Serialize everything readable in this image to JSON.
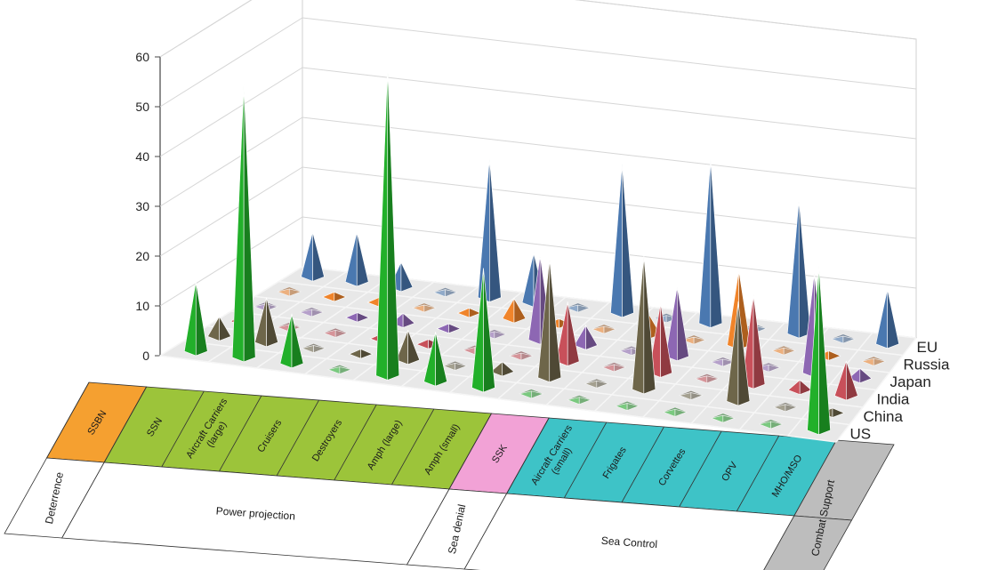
{
  "chart_data": {
    "type": "bar",
    "subtype": "3d-pyramid",
    "title": "",
    "xlabel": "",
    "ylabel": "",
    "ylim": [
      0,
      60
    ],
    "yticks": [
      0,
      10,
      20,
      30,
      40,
      50,
      60
    ],
    "grid": true,
    "categories": [
      "SSBN",
      "SSN",
      "Aircraft Carriers (large)",
      "Cruisers",
      "Destroyers",
      "Amph (large)",
      "Amph (small)",
      "SSK",
      "Aircraft Carriers (small)",
      "Frigates",
      "Corvettes",
      "OPV",
      "MHO/MSO",
      "Combat Support"
    ],
    "category_groups": [
      {
        "label": "Deterrence",
        "categories": [
          "SSBN"
        ],
        "color": "#f5a030"
      },
      {
        "label": "Power projection",
        "categories": [
          "SSN",
          "Aircraft Carriers (large)",
          "Cruisers",
          "Destroyers",
          "Amph (large)",
          "Amph (small)"
        ],
        "color": "#9cc43a"
      },
      {
        "label": "Sea denial",
        "categories": [
          "SSK"
        ],
        "color": "#f2a2d6"
      },
      {
        "label": "Sea Control",
        "categories": [
          "Aircraft Carriers (small)",
          "Frigates",
          "Corvettes",
          "OPV",
          "MHO/MSO"
        ],
        "color": "#3ec3c7"
      },
      {
        "label": "Combat Support",
        "categories": [
          "Combat Support"
        ],
        "color": "#bdbdbd"
      }
    ],
    "series": [
      {
        "name": "US",
        "color": "#22b02a",
        "values": [
          14,
          55,
          10,
          0,
          62,
          10,
          24,
          0,
          0,
          0,
          0,
          0,
          0,
          33
        ]
      },
      {
        "name": "China",
        "color": "#6e664a",
        "values": [
          4,
          9,
          0,
          1,
          6,
          0,
          2,
          24,
          0,
          27,
          0,
          20,
          0,
          1
        ]
      },
      {
        "name": "India",
        "color": "#c8505a",
        "values": [
          2,
          0,
          0,
          1,
          1,
          0,
          0,
          12,
          0,
          14,
          0,
          18,
          2,
          7
        ]
      },
      {
        "name": "Japan",
        "color": "#8d67b3",
        "values": [
          0,
          0,
          1,
          2,
          1,
          0,
          17,
          4,
          0,
          14,
          0,
          0,
          20,
          2
        ]
      },
      {
        "name": "Russia",
        "color": "#f0842a",
        "values": [
          0,
          1,
          1,
          0,
          1,
          4,
          1,
          0,
          4,
          0,
          15,
          0,
          1,
          0
        ]
      },
      {
        "name": "EU",
        "color": "#4a78b0",
        "values": [
          9,
          10,
          5,
          0,
          28,
          10,
          0,
          30,
          0,
          33,
          0,
          27,
          0,
          11
        ]
      }
    ]
  }
}
